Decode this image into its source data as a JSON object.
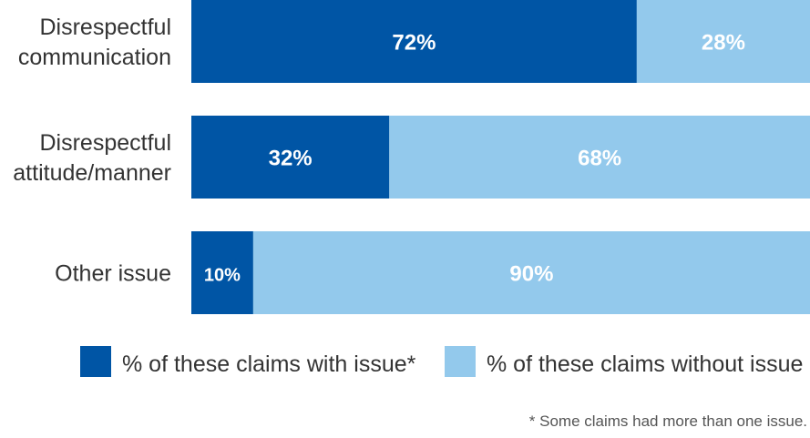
{
  "chart_data": {
    "type": "bar",
    "orientation": "horizontal",
    "stacked": true,
    "percent_stacked": true,
    "categories": [
      [
        "Disrespectful",
        "communication"
      ],
      [
        "Disrespectful",
        "attitude/manner"
      ],
      [
        "Other issue"
      ]
    ],
    "series": [
      {
        "name": "% of these claims with issue*",
        "color": "#0055a5",
        "values": [
          72,
          32,
          10
        ]
      },
      {
        "name": "% of these claims without issue",
        "color": "#93c9ec",
        "values": [
          28,
          68,
          90
        ]
      }
    ],
    "value_labels": [
      [
        "72%",
        "32%",
        "10%"
      ],
      [
        "28%",
        "68%",
        "90%"
      ]
    ],
    "xlim": [
      0,
      100
    ],
    "grid": false,
    "legend": "bottom",
    "footnote": "* Some claims had more than one issue."
  }
}
